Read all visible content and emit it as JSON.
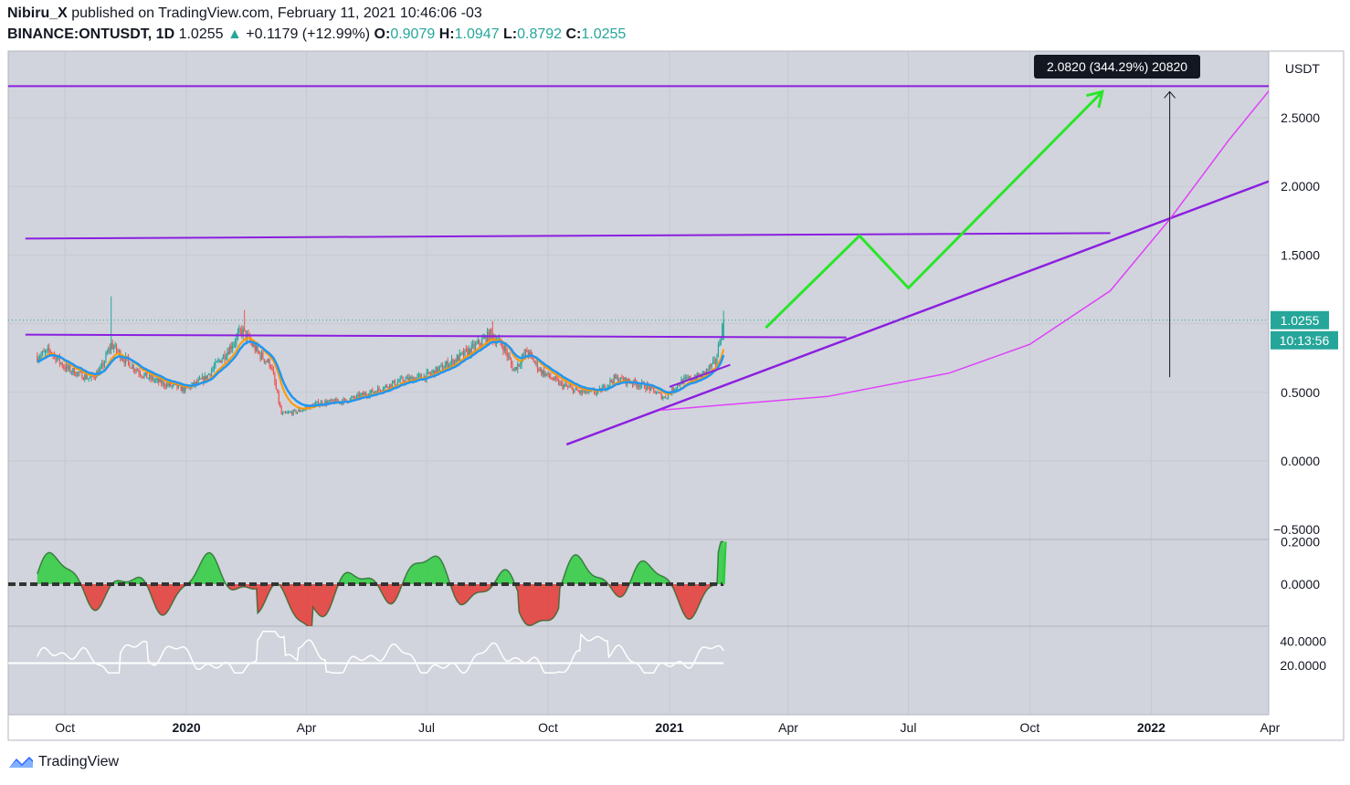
{
  "header": {
    "author": "Nibiru_X",
    "published_text": "published on TradingView.com, February 11, 2021 10:46:06 -03",
    "symbol": "BINANCE:ONTUSDT, 1D",
    "last": "1.0255",
    "change": "+0.1179 (+12.99%)",
    "o_label": "O:",
    "o_val": "0.9079",
    "h_label": "H:",
    "h_val": "1.0947",
    "l_label": "L:",
    "l_val": "0.8792",
    "c_label": "C:",
    "c_val": "1.0255"
  },
  "footer": {
    "brand": "TradingView"
  },
  "colors": {
    "background": "#d1d4dc",
    "purple": "#9c27b0",
    "violet": "#8b1fe0",
    "green_arrow": "#29e629",
    "magenta_curve": "#e040fb",
    "ema_blue": "#2196f3",
    "ema_orange": "#ff9800",
    "candle_up": "#26a69a",
    "candle_down": "#ef5350",
    "osc_green": "#2ecc40",
    "osc_red": "#e53935"
  },
  "chart_data": [
    {
      "type": "candlestick",
      "unit_label": "USDT",
      "y_ticks": [
        "2.5000",
        "2.0000",
        "1.5000",
        "0.5000",
        "0.0000",
        "−0.5000"
      ],
      "ylim": [
        -0.5,
        2.8
      ],
      "x_ticks": [
        "Oct",
        "2020",
        "Apr",
        "Jul",
        "Oct",
        "2021",
        "Apr",
        "Jul",
        "Oct",
        "2022",
        "Apr"
      ],
      "last_price_label": "1.0255",
      "countdown_label": "10:13:56",
      "measure_label": "2.0820 (344.29%) 20820",
      "price_path": [
        [
          "2019-09-10",
          0.76
        ],
        [
          "2019-09-20",
          0.8
        ],
        [
          "2019-10-01",
          0.68
        ],
        [
          "2019-10-10",
          0.64
        ],
        [
          "2019-10-20",
          0.6
        ],
        [
          "2019-10-28",
          0.66
        ],
        [
          "2019-11-05",
          0.85
        ],
        [
          "2019-11-15",
          0.74
        ],
        [
          "2019-11-30",
          0.62
        ],
        [
          "2019-12-15",
          0.56
        ],
        [
          "2019-12-31",
          0.52
        ],
        [
          "2020-01-15",
          0.6
        ],
        [
          "2020-02-01",
          0.8
        ],
        [
          "2020-02-12",
          0.95
        ],
        [
          "2020-02-25",
          0.78
        ],
        [
          "2020-03-05",
          0.7
        ],
        [
          "2020-03-13",
          0.34
        ],
        [
          "2020-03-25",
          0.36
        ],
        [
          "2020-04-10",
          0.42
        ],
        [
          "2020-05-01",
          0.44
        ],
        [
          "2020-05-20",
          0.5
        ],
        [
          "2020-06-10",
          0.58
        ],
        [
          "2020-07-01",
          0.62
        ],
        [
          "2020-07-20",
          0.72
        ],
        [
          "2020-08-05",
          0.82
        ],
        [
          "2020-08-18",
          0.92
        ],
        [
          "2020-08-28",
          0.84
        ],
        [
          "2020-09-05",
          0.66
        ],
        [
          "2020-09-15",
          0.8
        ],
        [
          "2020-09-25",
          0.66
        ],
        [
          "2020-10-10",
          0.56
        ],
        [
          "2020-10-25",
          0.5
        ],
        [
          "2020-11-08",
          0.5
        ],
        [
          "2020-11-20",
          0.6
        ],
        [
          "2020-12-01",
          0.58
        ],
        [
          "2020-12-15",
          0.54
        ],
        [
          "2020-12-28",
          0.46
        ],
        [
          "2021-01-10",
          0.58
        ],
        [
          "2021-01-25",
          0.62
        ],
        [
          "2021-02-05",
          0.72
        ],
        [
          "2021-02-11",
          1.0255
        ]
      ],
      "levels": [
        {
          "name": "top-resistance",
          "price": 2.73
        },
        {
          "name": "mid-resistance",
          "from": [
            "2019-09-01",
            1.62
          ],
          "to": [
            "2021-12-01",
            1.66
          ]
        },
        {
          "name": "neckline",
          "from": [
            "2019-09-01",
            0.92
          ],
          "to": [
            "2021-05-15",
            0.9
          ]
        }
      ],
      "trendline": {
        "from": [
          "2020-10-15",
          0.12
        ],
        "to": [
          "2022-06-01",
          2.26
        ]
      },
      "projection_path": [
        [
          "2021-03-15",
          0.97
        ],
        [
          "2021-05-25",
          1.64
        ],
        [
          "2021-07-01",
          1.26
        ],
        [
          "2021-11-25",
          2.69
        ]
      ],
      "curve_points": [
        [
          "2020-12-25",
          0.37
        ],
        [
          "2021-05-01",
          0.47
        ],
        [
          "2021-08-01",
          0.64
        ],
        [
          "2021-10-01",
          0.85
        ],
        [
          "2021-12-01",
          1.24
        ],
        [
          "2022-01-15",
          1.76
        ],
        [
          "2022-03-01",
          2.34
        ],
        [
          "2022-04-20",
          2.93
        ]
      ],
      "measure": {
        "date": "2022-01-15",
        "from": 0.61,
        "to": 2.69
      }
    },
    {
      "type": "area",
      "name": "oscillator",
      "y_ticks": [
        "0.2000",
        "0.0000"
      ],
      "ylim": [
        -0.2,
        0.2
      ]
    },
    {
      "type": "line",
      "name": "oscillator-2",
      "y_ticks": [
        "40.0000",
        "20.0000"
      ],
      "ylim": [
        10,
        50
      ],
      "reference_level": 22
    }
  ]
}
